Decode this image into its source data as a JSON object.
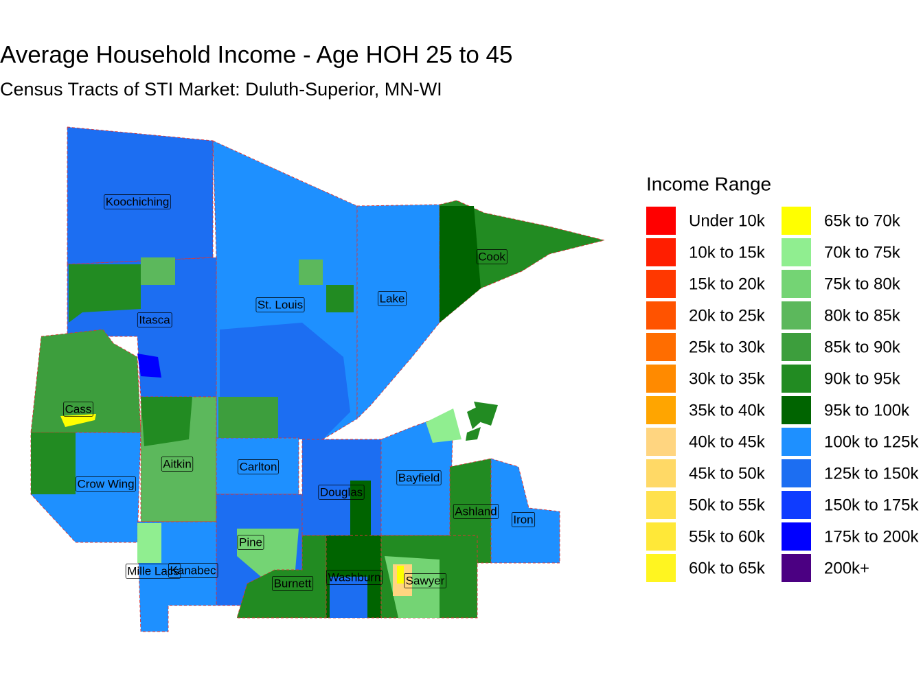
{
  "header": {
    "title": "Average Household Income - Age HOH 25 to 45",
    "subtitle": "Census Tracts of STI Market: Duluth-Superior, MN-WI"
  },
  "legend": {
    "title": "Income Range",
    "items": [
      {
        "label": "Under 10k",
        "color": "#FF0000"
      },
      {
        "label": "10k to 15k",
        "color": "#FF1E00"
      },
      {
        "label": "15k to 20k",
        "color": "#FF3800"
      },
      {
        "label": "20k to 25k",
        "color": "#FF5300"
      },
      {
        "label": "25k to 30k",
        "color": "#FF6D00"
      },
      {
        "label": "30k to 35k",
        "color": "#FF8A00"
      },
      {
        "label": "35k to 40k",
        "color": "#FFA500"
      },
      {
        "label": "40k to 45k",
        "color": "#FFD580"
      },
      {
        "label": "45k to 50k",
        "color": "#FFD966"
      },
      {
        "label": "50k to 55k",
        "color": "#FFE14D"
      },
      {
        "label": "55k to 60k",
        "color": "#FFE838"
      },
      {
        "label": "60k to 65k",
        "color": "#FFF520"
      },
      {
        "label": "65k to 70k",
        "color": "#FFFF00"
      },
      {
        "label": "70k to 75k",
        "color": "#90EE90"
      },
      {
        "label": "75k to 80k",
        "color": "#74D474"
      },
      {
        "label": "80k to 85k",
        "color": "#5CB85C"
      },
      {
        "label": "85k to 90k",
        "color": "#3D9E3D"
      },
      {
        "label": "90k to 95k",
        "color": "#228B22"
      },
      {
        "label": "95k to 100k",
        "color": "#006400"
      },
      {
        "label": "100k to 125k",
        "color": "#1E90FF"
      },
      {
        "label": "125k to 150k",
        "color": "#1C6EF2"
      },
      {
        "label": "150k to 175k",
        "color": "#0F3CFF"
      },
      {
        "label": "175k to 200k",
        "color": "#0000FF"
      },
      {
        "label": "200k+",
        "color": "#4B0082"
      }
    ]
  },
  "counties": [
    {
      "label": "Koochiching"
    },
    {
      "label": "Cook"
    },
    {
      "label": "St. Louis"
    },
    {
      "label": "Lake"
    },
    {
      "label": "Itasca"
    },
    {
      "label": "Cass"
    },
    {
      "label": "Aitkin"
    },
    {
      "label": "Carlton"
    },
    {
      "label": "Crow Wing"
    },
    {
      "label": "Bayfield"
    },
    {
      "label": "Douglas"
    },
    {
      "label": "Ashland"
    },
    {
      "label": "Iron"
    },
    {
      "label": "Pine"
    },
    {
      "label": "Mille Lacs"
    },
    {
      "label": "Kanabec"
    },
    {
      "label": "Burnett"
    },
    {
      "label": "Washburn"
    },
    {
      "label": "Sawyer"
    }
  ]
}
